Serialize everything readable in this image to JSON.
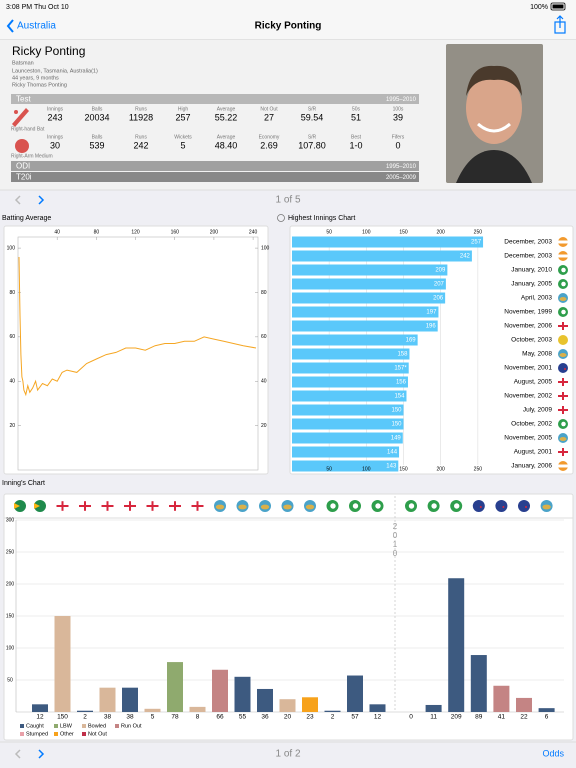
{
  "status": {
    "time": "3:08 PM",
    "date": "Thu Oct 10",
    "battery": "100%"
  },
  "nav": {
    "back": "Australia",
    "title": "Ricky Ponting"
  },
  "profile": {
    "name": "Ricky Ponting",
    "role": "Batsman",
    "birthplace": "Launceston, Tasmania, Australia(1)",
    "age": "44 years, 9 months",
    "full_name": "Ricky Thomas Ponting"
  },
  "stats": {
    "test": {
      "label": "Test",
      "years": "1995–2010",
      "batting": {
        "style": "Right-hand Bat",
        "headers": [
          "Innings",
          "Balls",
          "Runs",
          "High",
          "Average",
          "Not Out",
          "S/R",
          "50s",
          "100s"
        ],
        "values": [
          "243",
          "20034",
          "11928",
          "257",
          "55.22",
          "27",
          "59.54",
          "51",
          "39"
        ]
      },
      "bowling": {
        "style": "Right-Arm Medium",
        "headers": [
          "Innings",
          "Balls",
          "Runs",
          "Wickets",
          "Average",
          "Economy",
          "S/R",
          "Best",
          "Fifers"
        ],
        "values": [
          "30",
          "539",
          "242",
          "5",
          "48.40",
          "2.69",
          "107.80",
          "1-0",
          "0"
        ]
      }
    },
    "other": [
      {
        "label": "ODI",
        "years": "1995–2010"
      },
      {
        "label": "T20i",
        "years": "2005–2009"
      }
    ]
  },
  "pager_top": "1 of 5",
  "chart_data": [
    {
      "type": "line",
      "title": "Batting Average",
      "color": "#f5a623",
      "x": [
        1,
        2,
        3,
        4,
        5,
        6,
        8,
        10,
        12,
        15,
        18,
        20,
        25,
        30,
        35,
        40,
        45,
        50,
        60,
        70,
        80,
        90,
        100,
        110,
        120,
        130,
        140,
        150,
        160,
        170,
        180,
        190,
        200,
        210,
        220,
        230,
        243
      ],
      "values": [
        96,
        70,
        52,
        42,
        40,
        36,
        34,
        38,
        35,
        37,
        40,
        36,
        39,
        38,
        41,
        40,
        44,
        45,
        44,
        48,
        50,
        52,
        53,
        55,
        55,
        54,
        56,
        57,
        57,
        58,
        58,
        60,
        59,
        58,
        57,
        56,
        55
      ],
      "xlim": [
        0,
        245
      ],
      "xticks": [
        40,
        80,
        120,
        160,
        200,
        240
      ],
      "ylim": [
        0,
        105
      ],
      "yticks": [
        20,
        40,
        60,
        80,
        100
      ]
    },
    {
      "type": "hbar",
      "title": "Highest Innings Chart",
      "color": "#5ac8fa",
      "categories": [
        "December, 2003",
        "December, 2003",
        "January, 2010",
        "January, 2005",
        "April, 2003",
        "November, 1999",
        "November, 2006",
        "October, 2003",
        "May, 2008",
        "November, 2001",
        "August, 2005",
        "November, 2002",
        "July, 2009",
        "October, 2002",
        "November, 2005",
        "August, 2001",
        "January, 2006"
      ],
      "values": [
        257,
        242,
        209,
        207,
        206,
        197,
        196,
        169,
        158,
        157,
        156,
        154,
        150,
        150,
        149,
        144,
        143
      ],
      "value_labels": [
        "257",
        "242",
        "209",
        "207",
        "206",
        "197",
        "196",
        "169",
        "158",
        "157*",
        "156",
        "154",
        "150",
        "150",
        "149",
        "144",
        "143"
      ],
      "xlim": [
        0,
        265
      ],
      "xticks": [
        50,
        100,
        150,
        200,
        250
      ]
    },
    {
      "type": "column",
      "title": "Inning's Chart",
      "divider_label": "2010",
      "values": [
        12,
        150,
        2,
        38,
        38,
        5,
        78,
        8,
        66,
        55,
        36,
        20,
        23,
        2,
        57,
        12,
        0,
        11,
        209,
        89,
        41,
        22,
        6
      ],
      "colors": [
        "#3d5a80",
        "#d9b79a",
        "#3d5a80",
        "#d9b79a",
        "#3d5a80",
        "#d9b79a",
        "#8faa6e",
        "#d9b79a",
        "#c48484",
        "#3d5a80",
        "#3d5a80",
        "#d9b79a",
        "#f7a21b",
        "#3d5a80",
        "#3d5a80",
        "#3d5a80",
        "#3d5a80",
        "#3d5a80",
        "#3d5a80",
        "#3d5a80",
        "#c48484",
        "#c48484",
        "#3d5a80"
      ],
      "legend": [
        {
          "name": "Caught",
          "color": "#3d5a80"
        },
        {
          "name": "LBW",
          "color": "#8faa6e"
        },
        {
          "name": "Bowled",
          "color": "#d9b79a"
        },
        {
          "name": "Run Out",
          "color": "#c48484"
        },
        {
          "name": "Stumped",
          "color": "#e8a0a8"
        },
        {
          "name": "Other",
          "color": "#f7a21b"
        },
        {
          "name": "Not Out",
          "color": "#c0304a"
        }
      ],
      "ylim": [
        0,
        300
      ],
      "yticks": [
        50,
        100,
        150,
        200,
        250,
        300
      ]
    }
  ],
  "footer": {
    "pager": "1 of 2",
    "action": "Odds"
  }
}
